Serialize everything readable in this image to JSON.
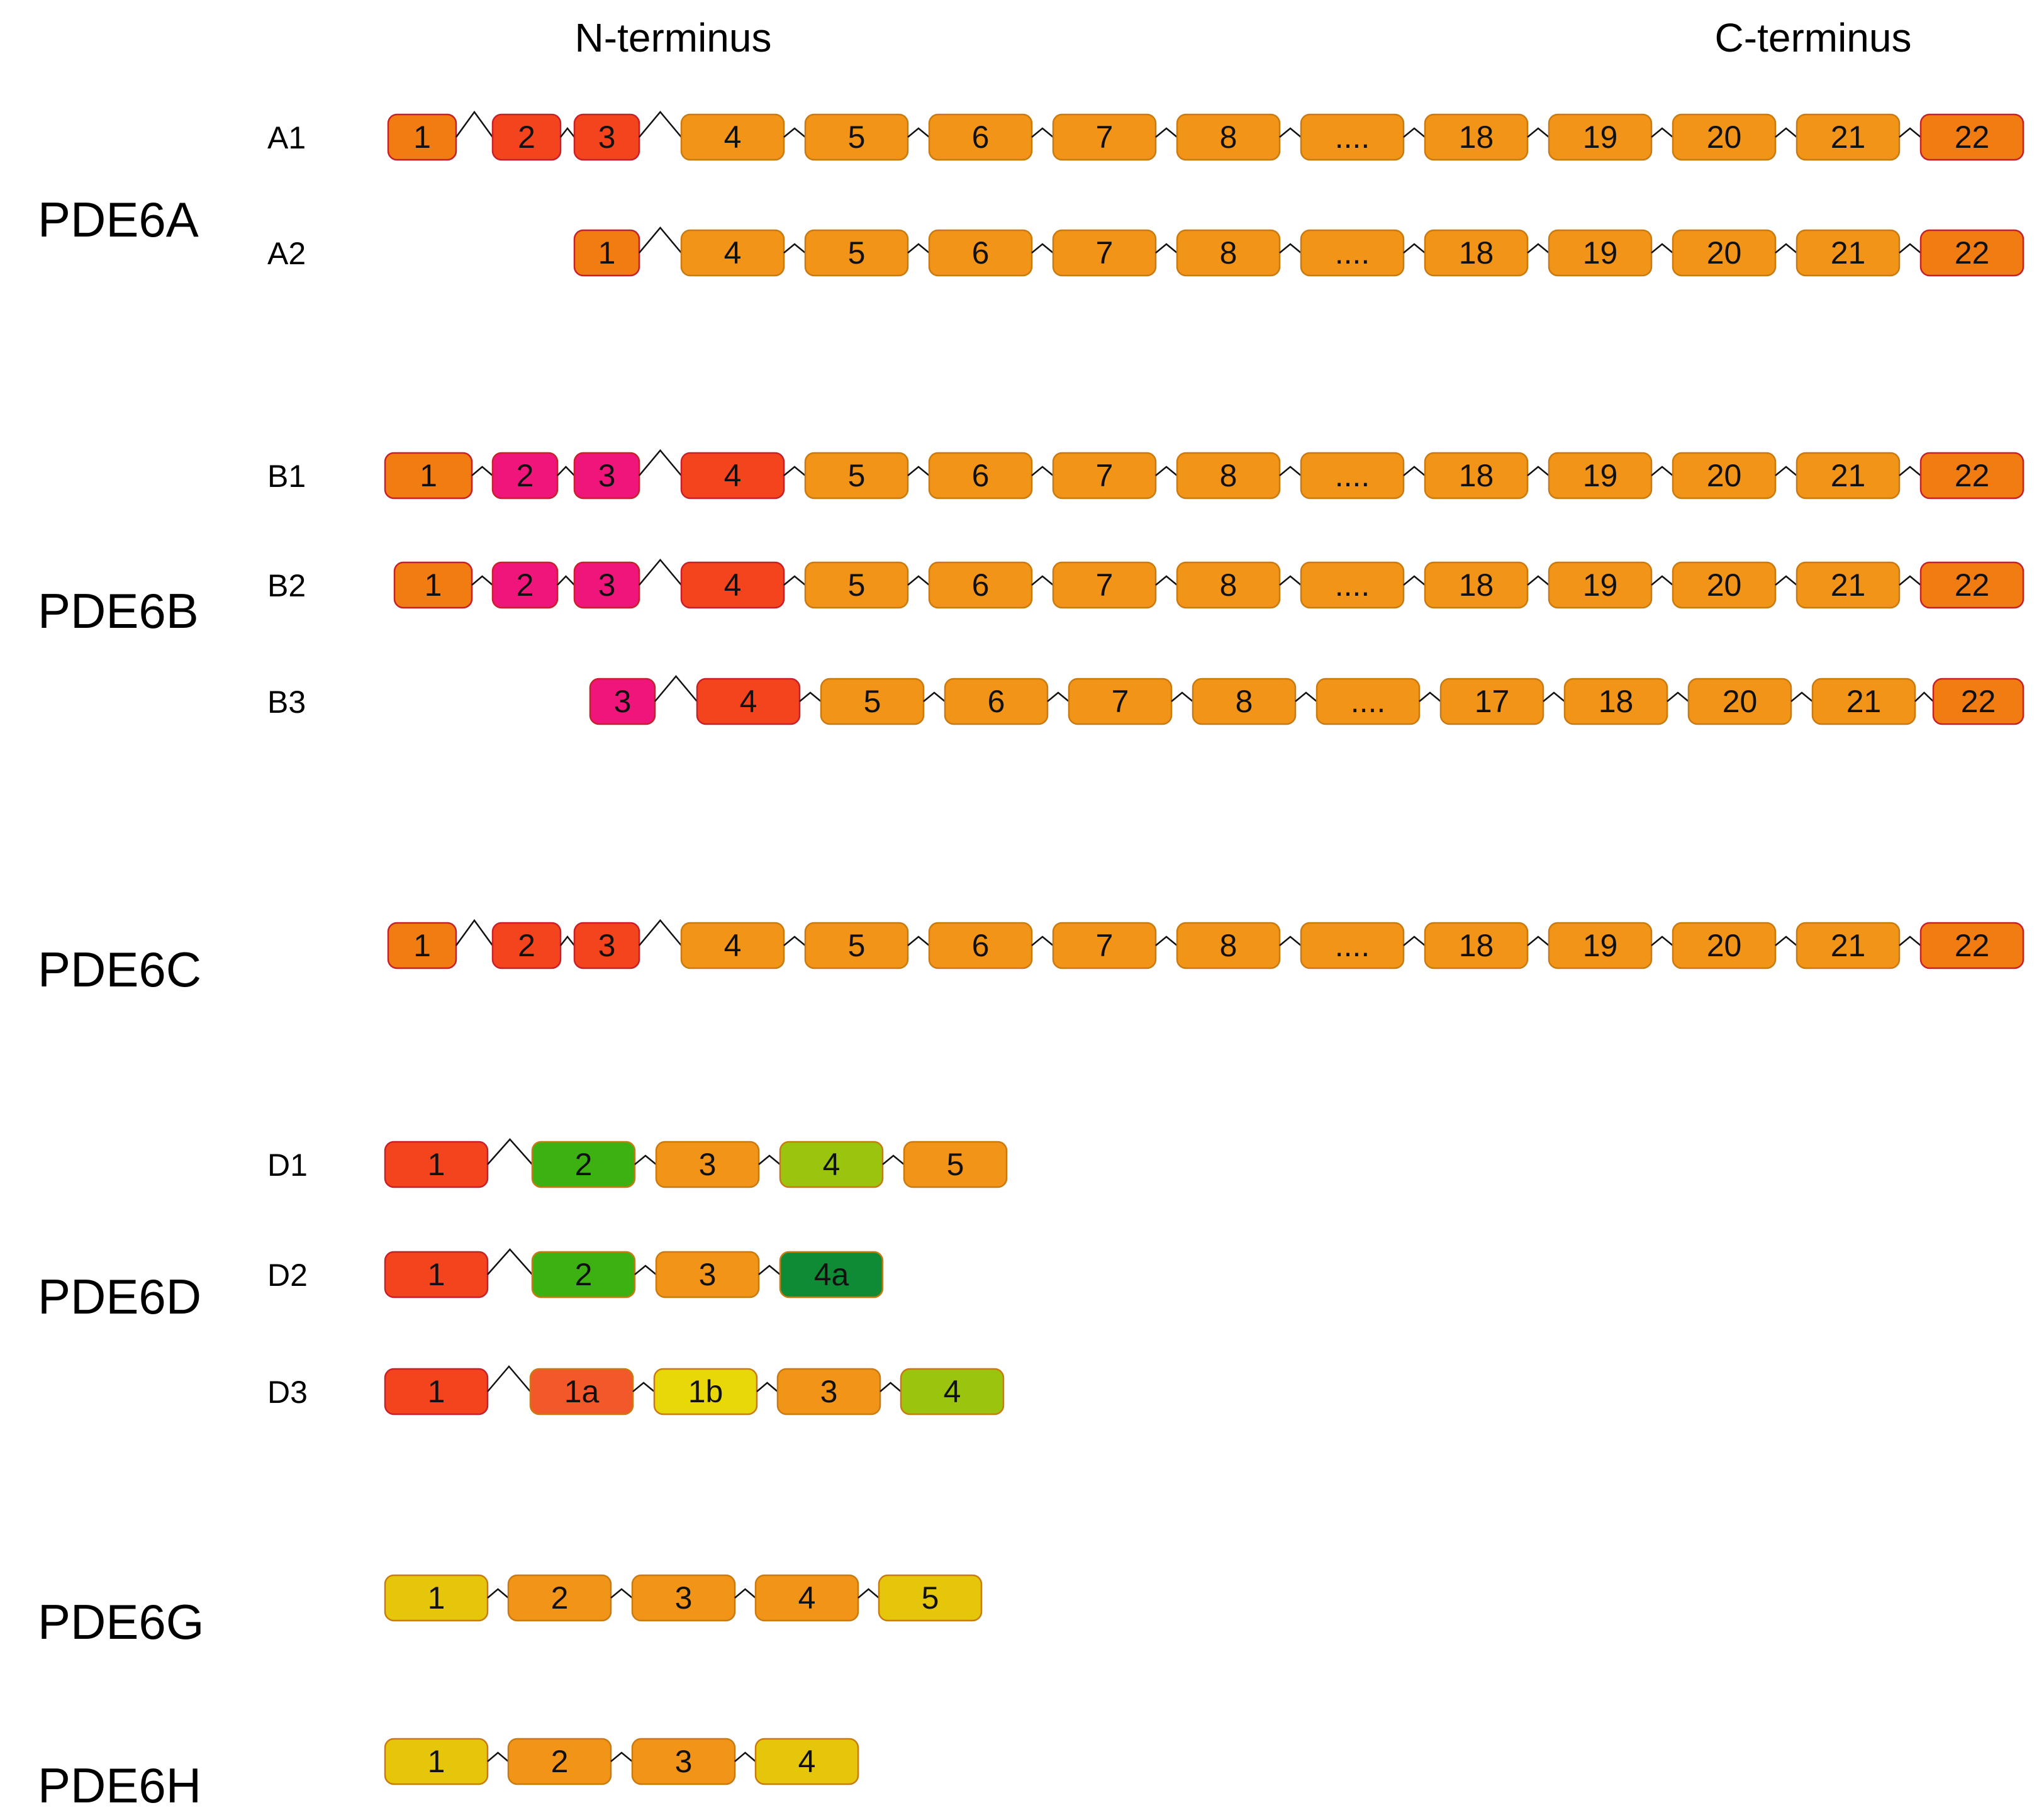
{
  "colors": {
    "orange": "#F19418",
    "orange_dark": "#F07C12",
    "red_orange": "#F4441E",
    "red": "#EE3A23",
    "pink": "#F0157B",
    "green": "#3DB012",
    "dark_green": "#0F8A35",
    "yellow_green": "#9BC40E",
    "yellow": "#E6C60A",
    "yellow_bright": "#E8D80A",
    "salmon": "#F2582A",
    "border": "#C97A10",
    "border_red": "#C8202A"
  },
  "header": {
    "n_terminus": "N-terminus",
    "c_terminus": "C-terminus"
  },
  "genes": [
    {
      "label": "PDE6A",
      "isoforms": [
        {
          "label": "A1",
          "exons": [
            {
              "t": "1",
              "c": "orange_dark"
            },
            {
              "t": "2",
              "c": "red_orange"
            },
            {
              "t": "3",
              "c": "red_orange"
            },
            {
              "t": "4",
              "c": "orange"
            },
            {
              "t": "5",
              "c": "orange"
            },
            {
              "t": "6",
              "c": "orange"
            },
            {
              "t": "7",
              "c": "orange"
            },
            {
              "t": "8",
              "c": "orange"
            },
            {
              "t": "....",
              "c": "orange"
            },
            {
              "t": "18",
              "c": "orange"
            },
            {
              "t": "19",
              "c": "orange"
            },
            {
              "t": "20",
              "c": "orange"
            },
            {
              "t": "21",
              "c": "orange"
            },
            {
              "t": "22",
              "c": "orange_dark"
            }
          ]
        },
        {
          "label": "A2",
          "exons": [
            {
              "t": "1",
              "c": "orange_dark"
            },
            {
              "t": "4",
              "c": "orange"
            },
            {
              "t": "5",
              "c": "orange"
            },
            {
              "t": "6",
              "c": "orange"
            },
            {
              "t": "7",
              "c": "orange"
            },
            {
              "t": "8",
              "c": "orange"
            },
            {
              "t": "....",
              "c": "orange"
            },
            {
              "t": "18",
              "c": "orange"
            },
            {
              "t": "19",
              "c": "orange"
            },
            {
              "t": "20",
              "c": "orange"
            },
            {
              "t": "21",
              "c": "orange"
            },
            {
              "t": "22",
              "c": "orange_dark"
            }
          ]
        }
      ]
    },
    {
      "label": "PDE6B",
      "isoforms": [
        {
          "label": "B1",
          "exons": [
            {
              "t": "1",
              "c": "orange_dark"
            },
            {
              "t": "2",
              "c": "pink"
            },
            {
              "t": "3",
              "c": "pink"
            },
            {
              "t": "4",
              "c": "red_orange"
            },
            {
              "t": "5",
              "c": "orange"
            },
            {
              "t": "6",
              "c": "orange"
            },
            {
              "t": "7",
              "c": "orange"
            },
            {
              "t": "8",
              "c": "orange"
            },
            {
              "t": "....",
              "c": "orange"
            },
            {
              "t": "18",
              "c": "orange"
            },
            {
              "t": "19",
              "c": "orange"
            },
            {
              "t": "20",
              "c": "orange"
            },
            {
              "t": "21",
              "c": "orange"
            },
            {
              "t": "22",
              "c": "orange_dark"
            }
          ]
        },
        {
          "label": "B2",
          "exons": [
            {
              "t": "1",
              "c": "orange_dark"
            },
            {
              "t": "2",
              "c": "pink"
            },
            {
              "t": "3",
              "c": "pink"
            },
            {
              "t": "4",
              "c": "red_orange"
            },
            {
              "t": "5",
              "c": "orange"
            },
            {
              "t": "6",
              "c": "orange"
            },
            {
              "t": "7",
              "c": "orange"
            },
            {
              "t": "8",
              "c": "orange"
            },
            {
              "t": "....",
              "c": "orange"
            },
            {
              "t": "18",
              "c": "orange"
            },
            {
              "t": "19",
              "c": "orange"
            },
            {
              "t": "20",
              "c": "orange"
            },
            {
              "t": "21",
              "c": "orange"
            },
            {
              "t": "22",
              "c": "orange_dark"
            }
          ]
        },
        {
          "label": "B3",
          "exons": [
            {
              "t": "3",
              "c": "pink"
            },
            {
              "t": "4",
              "c": "red_orange"
            },
            {
              "t": "5",
              "c": "orange"
            },
            {
              "t": "6",
              "c": "orange"
            },
            {
              "t": "7",
              "c": "orange"
            },
            {
              "t": "8",
              "c": "orange"
            },
            {
              "t": "....",
              "c": "orange"
            },
            {
              "t": "17",
              "c": "orange"
            },
            {
              "t": "18",
              "c": "orange"
            },
            {
              "t": "20",
              "c": "orange"
            },
            {
              "t": "21",
              "c": "orange"
            },
            {
              "t": "22",
              "c": "orange_dark"
            }
          ]
        }
      ]
    },
    {
      "label": "PDE6C",
      "isoforms": [
        {
          "label": "",
          "exons": [
            {
              "t": "1",
              "c": "orange_dark"
            },
            {
              "t": "2",
              "c": "red_orange"
            },
            {
              "t": "3",
              "c": "red_orange"
            },
            {
              "t": "4",
              "c": "orange"
            },
            {
              "t": "5",
              "c": "orange"
            },
            {
              "t": "6",
              "c": "orange"
            },
            {
              "t": "7",
              "c": "orange"
            },
            {
              "t": "8",
              "c": "orange"
            },
            {
              "t": "....",
              "c": "orange"
            },
            {
              "t": "18",
              "c": "orange"
            },
            {
              "t": "19",
              "c": "orange"
            },
            {
              "t": "20",
              "c": "orange"
            },
            {
              "t": "21",
              "c": "orange"
            },
            {
              "t": "22",
              "c": "orange_dark"
            }
          ]
        }
      ]
    },
    {
      "label": "PDE6D",
      "isoforms": [
        {
          "label": "D1",
          "exons": [
            {
              "t": "1",
              "c": "red_orange"
            },
            {
              "t": "2",
              "c": "green"
            },
            {
              "t": "3",
              "c": "orange"
            },
            {
              "t": "4",
              "c": "yellow_green"
            },
            {
              "t": "5",
              "c": "orange"
            }
          ]
        },
        {
          "label": "D2",
          "exons": [
            {
              "t": "1",
              "c": "red_orange"
            },
            {
              "t": "2",
              "c": "green"
            },
            {
              "t": "3",
              "c": "orange"
            },
            {
              "t": "4a",
              "c": "dark_green"
            }
          ]
        },
        {
          "label": "D3",
          "exons": [
            {
              "t": "1",
              "c": "red_orange"
            },
            {
              "t": "1a",
              "c": "salmon"
            },
            {
              "t": "1b",
              "c": "yellow_bright"
            },
            {
              "t": "3",
              "c": "orange"
            },
            {
              "t": "4",
              "c": "yellow_green"
            }
          ]
        }
      ]
    },
    {
      "label": "PDE6G",
      "isoforms": [
        {
          "label": "",
          "exons": [
            {
              "t": "1",
              "c": "yellow"
            },
            {
              "t": "2",
              "c": "orange"
            },
            {
              "t": "3",
              "c": "orange"
            },
            {
              "t": "4",
              "c": "orange"
            },
            {
              "t": "5",
              "c": "yellow"
            }
          ]
        }
      ]
    },
    {
      "label": "PDE6H",
      "isoforms": [
        {
          "label": "",
          "exons": [
            {
              "t": "1",
              "c": "yellow"
            },
            {
              "t": "2",
              "c": "orange"
            },
            {
              "t": "3",
              "c": "orange"
            },
            {
              "t": "4",
              "c": "yellow"
            }
          ]
        }
      ]
    }
  ]
}
